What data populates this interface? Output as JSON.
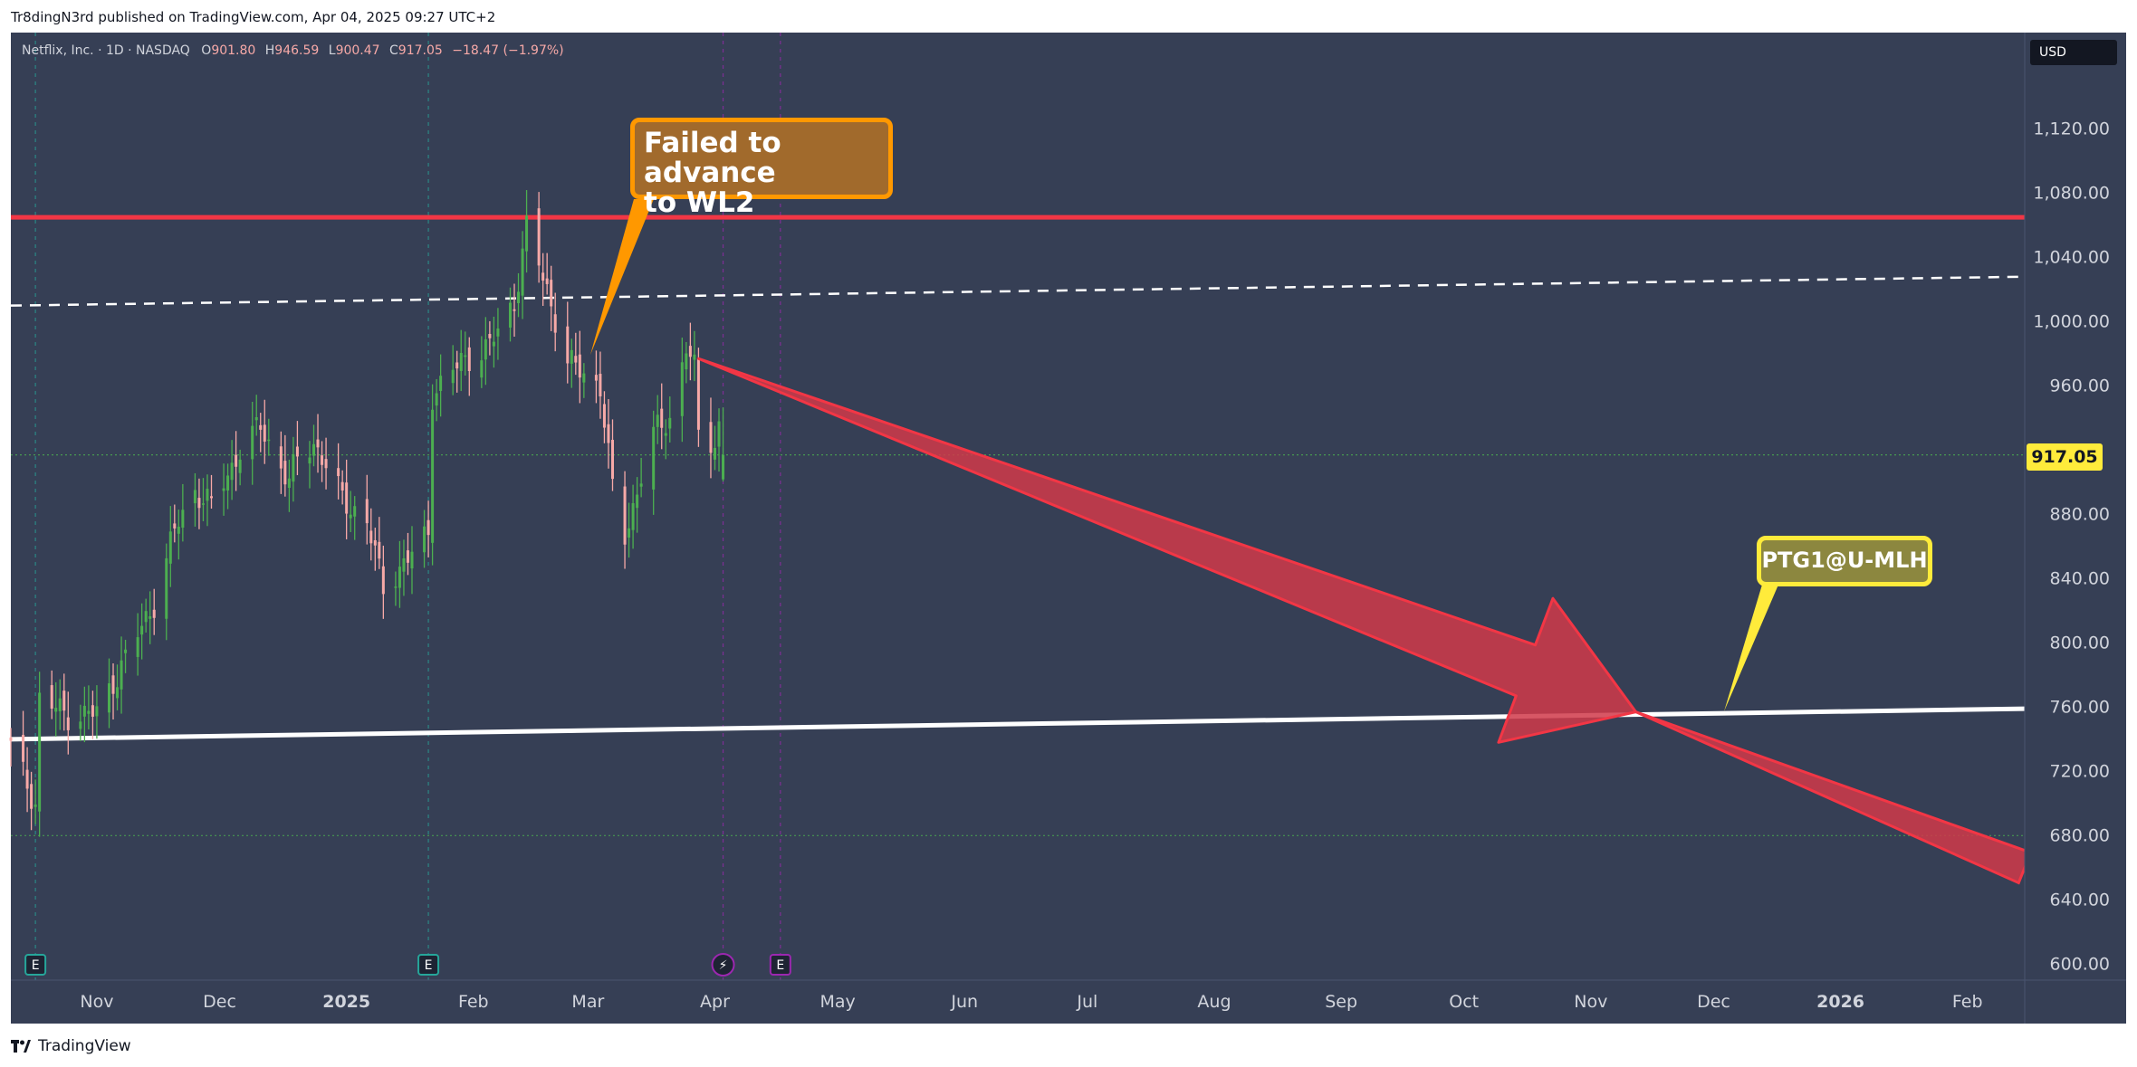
{
  "publisher_line": "Tr8dingN3rd published on TradingView.com, Apr 04, 2025 09:27 UTC+2",
  "footer": {
    "brand": "TradingView",
    "logo_icon": "tradingview-logo-icon"
  },
  "legend": {
    "symbol": "Netflix, Inc. · 1D · NASDAQ",
    "open_label": "O",
    "open": "901.80",
    "high_label": "H",
    "high": "946.59",
    "low_label": "L",
    "low": "900.47",
    "close_label": "C",
    "close": "917.05",
    "change": "−18.47 (−1.97%)"
  },
  "currency": "USD",
  "last_price_label": "917.05",
  "annotations": {
    "failed_callout": "Failed to advance\nto WL2",
    "ptg_callout": "PTG1@U-MLH"
  },
  "colors": {
    "background": "#363f55",
    "up_candle": "#4caf50",
    "down_candle": "#f7a9a7",
    "resistance_line": "#f23645",
    "trend_arrow": "#d0394a",
    "callout_orange": "#ff9800",
    "callout_yellow": "#ffeb3b",
    "earnings_green": "#26a69a",
    "earnings_purple": "#9c27b0"
  },
  "chart_data": {
    "type": "candlestick",
    "symbol": "Netflix, Inc.",
    "interval": "1D",
    "exchange": "NASDAQ",
    "y_axis": {
      "ticks": [
        600,
        640,
        680,
        720,
        760,
        800,
        840,
        880,
        920,
        960,
        1000,
        1040,
        1080,
        1120
      ],
      "tick_labels": [
        "600.00",
        "640.00",
        "680.00",
        "720.00",
        "760.00",
        "800.00",
        "840.00",
        "880.00",
        "",
        "960.00",
        "1,000.00",
        "1,040.00",
        "1,080.00",
        "1,120.00"
      ],
      "range": [
        590,
        1180
      ]
    },
    "x_axis": {
      "labels": [
        {
          "label": "Nov",
          "date": "2024-11-01",
          "bold": false
        },
        {
          "label": "Dec",
          "date": "2024-12-01",
          "bold": false
        },
        {
          "label": "2025",
          "date": "2025-01-01",
          "bold": true
        },
        {
          "label": "Feb",
          "date": "2025-02-01",
          "bold": false
        },
        {
          "label": "Mar",
          "date": "2025-03-01",
          "bold": false
        },
        {
          "label": "Apr",
          "date": "2025-04-01",
          "bold": false
        },
        {
          "label": "May",
          "date": "2025-05-01",
          "bold": false
        },
        {
          "label": "Jun",
          "date": "2025-06-01",
          "bold": false
        },
        {
          "label": "Jul",
          "date": "2025-07-01",
          "bold": false
        },
        {
          "label": "Aug",
          "date": "2025-08-01",
          "bold": false
        },
        {
          "label": "Sep",
          "date": "2025-09-01",
          "bold": false
        },
        {
          "label": "Oct",
          "date": "2025-10-01",
          "bold": false
        },
        {
          "label": "Nov",
          "date": "2025-11-01",
          "bold": false
        },
        {
          "label": "Dec",
          "date": "2025-12-01",
          "bold": false
        },
        {
          "label": "2026",
          "date": "2026-01-01",
          "bold": true
        },
        {
          "label": "Feb",
          "date": "2026-02-01",
          "bold": false
        }
      ],
      "range": [
        "2024-10-11",
        "2026-02-15"
      ]
    },
    "anchor_close": [
      [
        "2024-10-11",
        735
      ],
      [
        "2024-10-17",
        700
      ],
      [
        "2024-10-18",
        765
      ],
      [
        "2024-10-25",
        755
      ],
      [
        "2024-11-01",
        756
      ],
      [
        "2024-11-08",
        790
      ],
      [
        "2024-11-15",
        825
      ],
      [
        "2024-11-20",
        870
      ],
      [
        "2024-11-25",
        895
      ],
      [
        "2024-11-29",
        885
      ],
      [
        "2024-12-06",
        920
      ],
      [
        "2024-12-11",
        935
      ],
      [
        "2024-12-18",
        900
      ],
      [
        "2024-12-20",
        915
      ],
      [
        "2024-12-24",
        925
      ],
      [
        "2024-12-31",
        890
      ],
      [
        "2025-01-06",
        875
      ],
      [
        "2025-01-10",
        835
      ],
      [
        "2025-01-17",
        855
      ],
      [
        "2025-01-21",
        868
      ],
      [
        "2025-01-22",
        955
      ],
      [
        "2025-01-29",
        975
      ],
      [
        "2025-02-05",
        985
      ],
      [
        "2025-02-11",
        1012
      ],
      [
        "2025-02-14",
        1058
      ],
      [
        "2025-02-19",
        1020
      ],
      [
        "2025-02-24",
        975
      ],
      [
        "2025-03-04",
        960
      ],
      [
        "2025-03-07",
        895
      ],
      [
        "2025-03-10",
        865
      ],
      [
        "2025-03-14",
        905
      ],
      [
        "2025-03-17",
        930
      ],
      [
        "2025-03-21",
        940
      ],
      [
        "2025-03-25",
        985
      ],
      [
        "2025-03-27",
        970
      ],
      [
        "2025-03-28",
        930
      ],
      [
        "2025-04-01",
        925
      ],
      [
        "2025-04-02",
        935
      ],
      [
        "2025-04-03",
        917
      ]
    ],
    "last_candle": {
      "open": 901.8,
      "high": 946.59,
      "low": 900.47,
      "close": 917.05,
      "change": -18.47,
      "change_pct": -1.97
    },
    "lines": [
      {
        "name": "resistance",
        "style": "solid",
        "color": "#f23645",
        "from": [
          "2024-10-11",
          1065
        ],
        "to": [
          "2026-02-15",
          1065
        ]
      },
      {
        "name": "upper-median-line-dashed",
        "style": "dashed",
        "color": "#ffffff",
        "from": [
          "2024-10-11",
          1010
        ],
        "to": [
          "2026-02-15",
          1028
        ]
      },
      {
        "name": "lower-median-line",
        "style": "solid",
        "color": "#ffffff",
        "from": [
          "2024-10-11",
          740
        ],
        "to": [
          "2026-02-15",
          759
        ]
      },
      {
        "name": "last-price-dotted",
        "style": "dotted",
        "color": "#4caf50",
        "from": [
          "2024-10-11",
          917.05
        ],
        "to": [
          "2026-02-15",
          917.05
        ]
      },
      {
        "name": "low-price-dotted",
        "style": "dotted",
        "color": "#4caf50",
        "from": [
          "2024-10-11",
          680
        ],
        "to": [
          "2026-02-15",
          680
        ]
      }
    ],
    "projection_arrow": {
      "color": "#d0394a",
      "start": [
        "2025-03-28",
        977
      ],
      "tip": [
        "2025-11-12",
        757
      ],
      "extension_end": [
        "2026-02-15",
        660
      ]
    },
    "events": [
      {
        "type": "earnings",
        "label": "E",
        "date": "2024-10-17",
        "color": "#26a69a"
      },
      {
        "type": "earnings",
        "label": "E",
        "date": "2025-01-21",
        "color": "#26a69a"
      },
      {
        "type": "dividend-or-split",
        "label": "⚡",
        "date": "2025-04-03",
        "color": "#9c27b0"
      },
      {
        "type": "earnings",
        "label": "E",
        "date": "2025-04-17",
        "color": "#9c27b0"
      }
    ]
  }
}
